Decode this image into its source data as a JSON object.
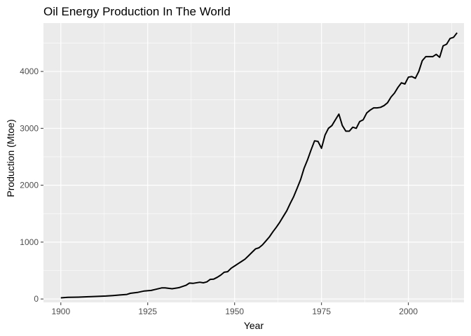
{
  "chart_data": {
    "type": "line",
    "title": "Oil Energy Production In The World",
    "xlabel": "Year",
    "ylabel": "Production (Mtoe)",
    "xlim": [
      1895,
      2016
    ],
    "ylim": [
      -60,
      4850
    ],
    "x_ticks": [
      1900,
      1925,
      1950,
      1975,
      2000
    ],
    "y_ticks": [
      0,
      1000,
      2000,
      3000,
      4000
    ],
    "grid": true,
    "legend": "none",
    "colors": {
      "panel": "#ebebeb",
      "grid": "#ffffff",
      "line": "#000000"
    },
    "series": [
      {
        "x": [
          1900,
          1902,
          1905,
          1908,
          1910,
          1913,
          1915,
          1917,
          1919,
          1920,
          1922,
          1924,
          1926,
          1927,
          1929,
          1930,
          1932,
          1934,
          1936,
          1937,
          1938,
          1940,
          1941,
          1942,
          1943,
          1944,
          1945,
          1946,
          1947,
          1948,
          1949,
          1950,
          1951,
          1952,
          1953,
          1954,
          1955,
          1956,
          1957,
          1958,
          1959,
          1960,
          1961,
          1962,
          1963,
          1964,
          1965,
          1966,
          1967,
          1968,
          1969,
          1970,
          1971,
          1972,
          1973,
          1974,
          1975,
          1976,
          1977,
          1978,
          1979,
          1980,
          1981,
          1982,
          1983,
          1984,
          1985,
          1986,
          1987,
          1988,
          1989,
          1990,
          1991,
          1992,
          1993,
          1994,
          1995,
          1996,
          1997,
          1998,
          1999,
          2000,
          2001,
          2002,
          2003,
          2004,
          2005,
          2006,
          2007,
          2008,
          2009,
          2010,
          2011,
          2012,
          2013,
          2014
        ],
        "y": [
          20,
          28,
          32,
          40,
          45,
          52,
          60,
          70,
          80,
          100,
          115,
          140,
          150,
          165,
          195,
          195,
          180,
          200,
          240,
          280,
          275,
          295,
          285,
          300,
          345,
          350,
          380,
          420,
          470,
          480,
          540,
          580,
          620,
          660,
          700,
          760,
          820,
          880,
          900,
          950,
          1020,
          1090,
          1180,
          1260,
          1350,
          1450,
          1550,
          1680,
          1800,
          1950,
          2100,
          2300,
          2450,
          2620,
          2780,
          2770,
          2650,
          2880,
          3000,
          3050,
          3150,
          3250,
          3050,
          2950,
          2950,
          3020,
          3000,
          3120,
          3150,
          3270,
          3320,
          3360,
          3360,
          3370,
          3400,
          3450,
          3550,
          3620,
          3720,
          3800,
          3780,
          3900,
          3910,
          3880,
          4000,
          4190,
          4260,
          4260,
          4260,
          4300,
          4250,
          4450,
          4480,
          4580,
          4600,
          4680
        ]
      }
    ]
  }
}
